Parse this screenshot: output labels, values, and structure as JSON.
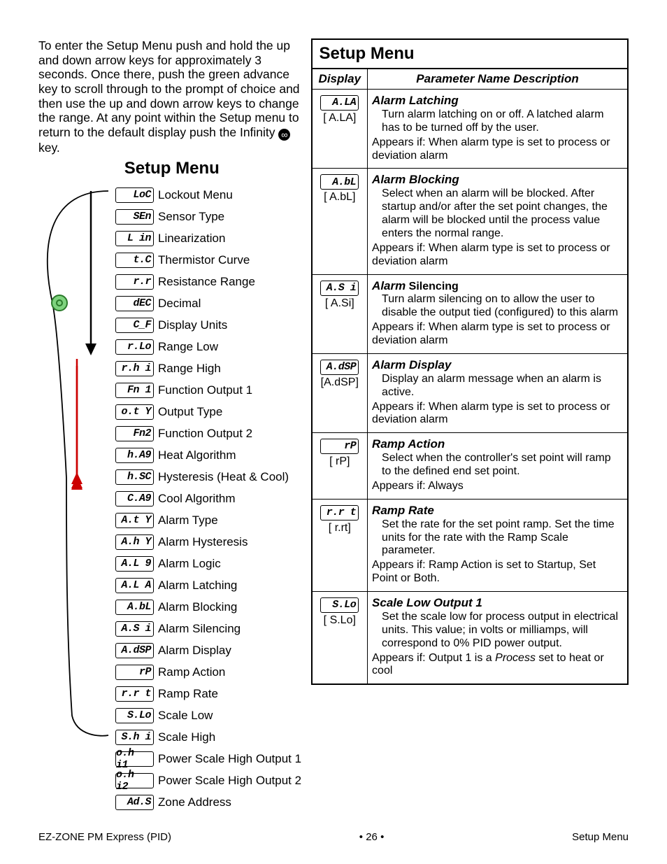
{
  "intro_pre": "To enter the Setup Menu push and hold the up and down arrow keys for approximately 3 seconds. Once there, push the green advance key to scroll through to the prompt of choice  and then use the up and down arrow keys to change the range. At any point within the Setup menu to return to the default display push the Infinity ",
  "intro_post": " key.",
  "left_heading": "Setup Menu",
  "menu_items": [
    {
      "seg": "LoC",
      "label": "Lockout Menu"
    },
    {
      "seg": "SEn",
      "label": "Sensor Type"
    },
    {
      "seg": "L in",
      "label": "Linearization"
    },
    {
      "seg": "t.C",
      "label": "Thermistor Curve"
    },
    {
      "seg": "r.r",
      "label": "Resistance Range"
    },
    {
      "seg": "dEC",
      "label": "Decimal"
    },
    {
      "seg": "C_F",
      "label": "Display Units"
    },
    {
      "seg": "r.Lo",
      "label": "Range Low"
    },
    {
      "seg": "r.h i",
      "label": "Range High"
    },
    {
      "seg": "Fn 1",
      "label": "Function Output 1"
    },
    {
      "seg": "o.t Y",
      "label": "Output Type"
    },
    {
      "seg": "Fn2",
      "label": "Function Output 2"
    },
    {
      "seg": "h.A9",
      "label": "Heat Algorithm"
    },
    {
      "seg": "h.SC",
      "label": "Hysteresis (Heat & Cool)"
    },
    {
      "seg": "C.A9",
      "label": "Cool Algorithm"
    },
    {
      "seg": "A.t Y",
      "label": "Alarm Type"
    },
    {
      "seg": "A.h Y",
      "label": "Alarm Hysteresis"
    },
    {
      "seg": "A.L 9",
      "label": "Alarm Logic"
    },
    {
      "seg": "A.L A",
      "label": "Alarm Latching"
    },
    {
      "seg": "A.bL",
      "label": "Alarm Blocking"
    },
    {
      "seg": "A.S i",
      "label": "Alarm Silencing"
    },
    {
      "seg": "A.dSP",
      "label": "Alarm Display"
    },
    {
      "seg": "rP",
      "label": "Ramp Action"
    },
    {
      "seg": "r.r t",
      "label": "Ramp Rate"
    },
    {
      "seg": "S.Lo",
      "label": "Scale Low"
    },
    {
      "seg": "S.h i",
      "label": "Scale High"
    },
    {
      "seg": "o.h i1",
      "label": "Power Scale High Output 1"
    },
    {
      "seg": "o.h i2",
      "label": "Power Scale High Output 2"
    },
    {
      "seg": "Ad.S",
      "label": "Zone Address"
    }
  ],
  "right_title": "Setup Menu",
  "col_display": "Display",
  "col_param": "Parameter Name Description",
  "rows": [
    {
      "seg": "A.LA",
      "code": "[ A.LA]",
      "name": "Alarm Latching",
      "desc": "Turn alarm latching on or off. A latched alarm has to be turned off by the user.",
      "appears": "Appears if: When alarm type is set to process or deviation alarm"
    },
    {
      "seg": "A.bL",
      "code": "[ A.bL]",
      "name": "Alarm Blocking",
      "desc": "Select when an alarm will be blocked. After startup and/or after the set point changes, the alarm will be blocked until the process value enters the normal range.",
      "appears": "Appears if: When alarm type is set to process or deviation alarm"
    },
    {
      "seg": "A.S i",
      "code": "[ A.Si]",
      "name_prefix": "Alarm",
      "name_rest": " Silencing",
      "desc": "Turn alarm silencing on to allow the user to disable the output tied (configured) to this alarm",
      "appears": "Appears if: When alarm type is set to process or deviation alarm"
    },
    {
      "seg": "A.dSP",
      "code": "[A.dSP]",
      "name": "Alarm Display",
      "desc": "Display an alarm message when an alarm is active.",
      "appears": "Appears if: When alarm type is set to process or deviation alarm"
    },
    {
      "seg": "rP",
      "code": "[  rP]",
      "name": "Ramp Action",
      "desc": "Select when the controller's set point will ramp to the defined end set point.",
      "appears": "Appears if: Always"
    },
    {
      "seg": "r.r t",
      "code": "[ r.rt]",
      "name": "Ramp Rate",
      "desc": "Set the rate for the set point ramp. Set the time units for the rate with the Ramp Scale parameter.",
      "appears": "Appears if: Ramp Action is set to Startup, Set Point or Both."
    },
    {
      "seg": "S.Lo",
      "code": "[ S.Lo]",
      "name": "Scale Low Output 1",
      "desc_html": "Set the scale low for process output in electrical units. This value; in volts or milliamps, will correspond to 0% PID power output.",
      "appears_html": "Appears if: Output 1 is a <i>Process</i> set to heat or cool"
    }
  ],
  "footer_left": "EZ-ZONE PM Express (PID)",
  "footer_center": "•  26  •",
  "footer_right": "Setup Menu"
}
